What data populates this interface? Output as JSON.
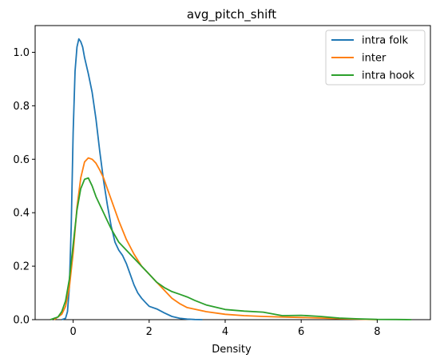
{
  "chart_data": {
    "type": "line",
    "title": "avg_pitch_shift",
    "xlabel": "Density",
    "ylabel": "",
    "xlim": [
      -1.0,
      9.4
    ],
    "ylim": [
      0,
      1.1
    ],
    "x_ticks": [
      0,
      2,
      4,
      6,
      8
    ],
    "y_ticks": [
      0.0,
      0.2,
      0.4,
      0.6,
      0.8,
      1.0
    ],
    "x_tick_labels": [
      "0",
      "2",
      "4",
      "6",
      "8"
    ],
    "y_tick_labels": [
      "0.0",
      "0.2",
      "0.4",
      "0.6",
      "0.8",
      "1.0"
    ],
    "grid": false,
    "legend_position": "top-right",
    "series": [
      {
        "name": "intra folk",
        "color": "#1f77b4",
        "x": [
          -0.3,
          -0.2,
          -0.15,
          -0.1,
          -0.05,
          0.0,
          0.05,
          0.1,
          0.15,
          0.2,
          0.25,
          0.3,
          0.4,
          0.5,
          0.6,
          0.7,
          0.8,
          0.9,
          1.0,
          1.1,
          1.2,
          1.3,
          1.4,
          1.5,
          1.6,
          1.7,
          1.8,
          1.9,
          2.0,
          2.2,
          2.4,
          2.6,
          2.8,
          3.0,
          3.2,
          3.4
        ],
        "values": [
          0.0,
          0.005,
          0.03,
          0.12,
          0.35,
          0.7,
          0.93,
          1.02,
          1.05,
          1.04,
          1.02,
          0.98,
          0.92,
          0.85,
          0.75,
          0.63,
          0.52,
          0.43,
          0.35,
          0.29,
          0.26,
          0.24,
          0.21,
          0.17,
          0.13,
          0.1,
          0.08,
          0.065,
          0.05,
          0.04,
          0.025,
          0.012,
          0.005,
          0.002,
          0.0005,
          0.0
        ]
      },
      {
        "name": "inter",
        "color": "#ff7f0e",
        "x": [
          -0.5,
          -0.3,
          -0.2,
          -0.1,
          0.0,
          0.1,
          0.2,
          0.3,
          0.4,
          0.5,
          0.6,
          0.7,
          0.8,
          0.9,
          1.0,
          1.2,
          1.4,
          1.6,
          1.8,
          2.0,
          2.2,
          2.4,
          2.6,
          2.8,
          3.0,
          3.5,
          4.0,
          4.5,
          5.0,
          5.5,
          6.0,
          6.5,
          7.0,
          7.5,
          8.0
        ],
        "values": [
          0.0,
          0.02,
          0.05,
          0.12,
          0.25,
          0.42,
          0.53,
          0.59,
          0.605,
          0.6,
          0.585,
          0.56,
          0.53,
          0.49,
          0.45,
          0.37,
          0.3,
          0.245,
          0.2,
          0.17,
          0.14,
          0.11,
          0.08,
          0.06,
          0.045,
          0.03,
          0.02,
          0.015,
          0.012,
          0.01,
          0.008,
          0.006,
          0.004,
          0.002,
          0.0
        ]
      },
      {
        "name": "intra hook",
        "color": "#2ca02c",
        "x": [
          -0.6,
          -0.4,
          -0.3,
          -0.2,
          -0.1,
          0.0,
          0.1,
          0.2,
          0.3,
          0.4,
          0.5,
          0.6,
          0.7,
          0.8,
          0.9,
          1.0,
          1.2,
          1.4,
          1.6,
          1.8,
          2.0,
          2.2,
          2.4,
          2.6,
          2.8,
          3.0,
          3.2,
          3.5,
          4.0,
          4.5,
          5.0,
          5.5,
          6.0,
          6.5,
          7.0,
          7.5,
          8.0,
          8.5,
          8.9
        ],
        "values": [
          0.0,
          0.01,
          0.03,
          0.07,
          0.15,
          0.28,
          0.41,
          0.49,
          0.525,
          0.53,
          0.5,
          0.46,
          0.43,
          0.4,
          0.37,
          0.34,
          0.29,
          0.26,
          0.23,
          0.2,
          0.17,
          0.14,
          0.12,
          0.105,
          0.095,
          0.085,
          0.072,
          0.055,
          0.038,
          0.032,
          0.028,
          0.015,
          0.016,
          0.012,
          0.006,
          0.003,
          0.001,
          0.0005,
          0.0
        ]
      }
    ]
  }
}
